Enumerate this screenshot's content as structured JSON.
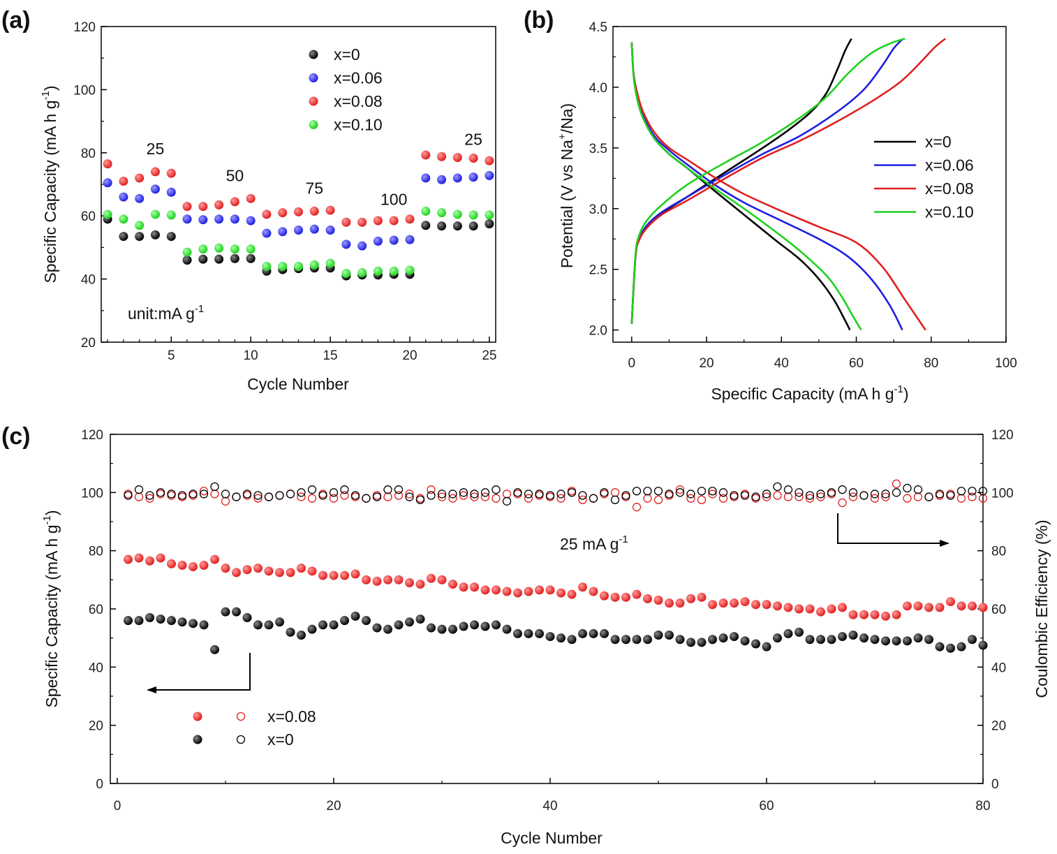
{
  "chart_data": [
    {
      "id": "a",
      "panel_label": "(a)",
      "type": "scatter",
      "xlabel": "Cycle Number",
      "ylabel": "Specific Capacity (mA h g",
      "ylabel_sup": "-1",
      "ylabel_end": ")",
      "xlim": [
        0.6,
        25.4
      ],
      "ylim": [
        20,
        120
      ],
      "xticks": [
        5,
        10,
        15,
        20,
        25
      ],
      "yticks": [
        20,
        40,
        60,
        80,
        100,
        120
      ],
      "note": "unit:mA g",
      "note_sup": "-1",
      "rate_labels": [
        {
          "text": "25",
          "x": 4.0,
          "y": 79.5
        },
        {
          "text": "50",
          "x": 9.0,
          "y": 71.0
        },
        {
          "text": "75",
          "x": 14.0,
          "y": 67.0
        },
        {
          "text": "100",
          "x": 19.0,
          "y": 63.5
        },
        {
          "text": "25",
          "x": 24.0,
          "y": 82.5
        }
      ],
      "series": [
        {
          "name": "x=0",
          "color": "#000000",
          "x": [
            1,
            2,
            3,
            4,
            5,
            6,
            7,
            8,
            9,
            10,
            11,
            12,
            13,
            14,
            15,
            16,
            17,
            18,
            19,
            20,
            21,
            22,
            23,
            24,
            25
          ],
          "y": [
            59,
            53.5,
            53.5,
            54,
            53.5,
            46,
            46.3,
            46.3,
            46.5,
            46.5,
            42.5,
            43,
            43.3,
            43.5,
            43.5,
            41,
            41.3,
            41.3,
            41.5,
            41.5,
            57,
            56.8,
            56.8,
            56.8,
            57.5
          ]
        },
        {
          "name": "x=0.06",
          "color": "#1f1fe0",
          "x": [
            1,
            2,
            3,
            4,
            5,
            6,
            7,
            8,
            9,
            10,
            11,
            12,
            13,
            14,
            15,
            16,
            17,
            18,
            19,
            20,
            21,
            22,
            23,
            24,
            25
          ],
          "y": [
            70.5,
            66,
            65.5,
            68.5,
            67.5,
            59,
            58.8,
            59,
            59,
            58.5,
            54.5,
            55,
            55.5,
            55.8,
            55.5,
            51,
            50.5,
            52,
            52.3,
            52.5,
            72,
            71.5,
            72,
            72.3,
            72.8
          ]
        },
        {
          "name": "x=0.08",
          "color": "#e01f1f",
          "x": [
            1,
            2,
            3,
            4,
            5,
            6,
            7,
            8,
            9,
            10,
            11,
            12,
            13,
            14,
            15,
            16,
            17,
            18,
            19,
            20,
            21,
            22,
            23,
            24,
            25
          ],
          "y": [
            76.5,
            71,
            72,
            74,
            73.5,
            63,
            63,
            63.5,
            64.5,
            65.5,
            60.5,
            61,
            61.3,
            61.5,
            61.8,
            58,
            58,
            58.5,
            58.5,
            59,
            79.3,
            78.8,
            78.5,
            78.3,
            77.5
          ]
        },
        {
          "name": "x=0.10",
          "color": "#1fd11f",
          "x": [
            1,
            2,
            3,
            4,
            5,
            6,
            7,
            8,
            9,
            10,
            11,
            12,
            13,
            14,
            15,
            16,
            17,
            18,
            19,
            20,
            21,
            22,
            23,
            24,
            25
          ],
          "y": [
            60.5,
            59,
            57,
            60.5,
            60.3,
            48.5,
            49.5,
            49.8,
            49.5,
            49.5,
            44,
            44,
            44,
            44.5,
            45,
            41.8,
            42,
            42.5,
            42.5,
            42.8,
            61.5,
            61,
            60.5,
            60.3,
            60.3
          ]
        }
      ]
    },
    {
      "id": "b",
      "panel_label": "(b)",
      "type": "line",
      "xlabel": "Specific Capacity (mA h g",
      "xlabel_sup": "-1",
      "xlabel_end": ")",
      "ylabel": "Potential (V vs Na",
      "ylabel_sup": "+",
      "ylabel_end": "/Na)",
      "xlim": [
        -5,
        100
      ],
      "ylim": [
        1.9,
        4.5
      ],
      "xticks": [
        0,
        20,
        40,
        60,
        80,
        100
      ],
      "yticks": [
        2.0,
        2.5,
        3.0,
        3.5,
        4.0,
        4.5
      ],
      "ytick_labels": [
        "2.0",
        "2.5",
        "3.0",
        "3.5",
        "4.0",
        "4.5"
      ],
      "series": [
        {
          "name": "x=0",
          "color": "#000000",
          "charge_x": [
            0,
            1,
            2,
            4,
            8,
            15,
            25,
            35,
            42,
            48,
            52,
            55,
            57,
            58.7
          ],
          "charge_y": [
            2.05,
            2.6,
            2.75,
            2.85,
            2.96,
            3.1,
            3.3,
            3.5,
            3.65,
            3.8,
            3.95,
            4.15,
            4.3,
            4.4
          ],
          "discharge_x": [
            0,
            0.5,
            1.5,
            3,
            6,
            10,
            15,
            22,
            30,
            38,
            45,
            50,
            54,
            57,
            58.3
          ],
          "discharge_y": [
            4.37,
            4.1,
            3.9,
            3.75,
            3.58,
            3.45,
            3.33,
            3.15,
            2.95,
            2.75,
            2.58,
            2.42,
            2.25,
            2.08,
            2.0
          ]
        },
        {
          "name": "x=0.06",
          "color": "#1f1fe0",
          "charge_x": [
            0,
            1,
            2,
            4,
            8,
            15,
            25,
            35,
            45,
            55,
            62,
            67,
            70,
            72.5
          ],
          "charge_y": [
            2.05,
            2.6,
            2.75,
            2.86,
            2.97,
            3.1,
            3.28,
            3.45,
            3.6,
            3.8,
            3.98,
            4.18,
            4.32,
            4.4
          ],
          "discharge_x": [
            0,
            0.5,
            1.5,
            3,
            6,
            10,
            15,
            22,
            30,
            40,
            50,
            58,
            64,
            69,
            72.3
          ],
          "discharge_y": [
            4.37,
            4.1,
            3.92,
            3.77,
            3.6,
            3.48,
            3.36,
            3.2,
            3.05,
            2.9,
            2.75,
            2.6,
            2.42,
            2.2,
            2.0
          ]
        },
        {
          "name": "x=0.08",
          "color": "#e01f1f",
          "charge_x": [
            0,
            1,
            2,
            4,
            8,
            15,
            25,
            35,
            45,
            55,
            65,
            72,
            77,
            81,
            83.8
          ],
          "charge_y": [
            2.05,
            2.6,
            2.74,
            2.84,
            2.95,
            3.07,
            3.25,
            3.42,
            3.56,
            3.72,
            3.9,
            4.05,
            4.2,
            4.33,
            4.4
          ],
          "discharge_x": [
            0,
            0.5,
            1.5,
            3,
            6,
            10,
            15,
            22,
            30,
            40,
            50,
            60,
            67,
            73,
            78.5
          ],
          "discharge_y": [
            4.37,
            4.12,
            3.95,
            3.8,
            3.63,
            3.5,
            3.4,
            3.26,
            3.12,
            2.98,
            2.85,
            2.72,
            2.52,
            2.25,
            2.0
          ]
        },
        {
          "name": "x=0.10",
          "color": "#1fd11f",
          "charge_x": [
            0,
            1,
            2,
            4,
            8,
            15,
            25,
            35,
            45,
            52,
            58,
            64,
            69,
            73
          ],
          "charge_y": [
            2.05,
            2.62,
            2.78,
            2.9,
            3.03,
            3.2,
            3.38,
            3.55,
            3.75,
            3.92,
            4.12,
            4.28,
            4.36,
            4.4
          ],
          "discharge_x": [
            0,
            0.5,
            1.5,
            3,
            6,
            10,
            15,
            22,
            30,
            38,
            45,
            52,
            56,
            59,
            61.3
          ],
          "discharge_y": [
            4.37,
            4.1,
            3.9,
            3.75,
            3.58,
            3.45,
            3.33,
            3.17,
            3.0,
            2.82,
            2.65,
            2.45,
            2.28,
            2.12,
            2.0
          ]
        }
      ]
    },
    {
      "id": "c",
      "panel_label": "(c)",
      "type": "scatter",
      "xlabel": "Cycle Number",
      "ylabel": "Specific Capacity (mA h g",
      "ylabel_sup": "-1",
      "ylabel_end": ")",
      "y2label": "Coulombic Efficiency (%)",
      "xlim": [
        0,
        80
      ],
      "ylim": [
        0,
        120
      ],
      "y2lim": [
        0,
        120
      ],
      "xticks": [
        0,
        20,
        40,
        60,
        80
      ],
      "yticks": [
        0,
        20,
        40,
        60,
        80,
        100,
        120
      ],
      "note": "25 mA g",
      "note_sup": "-1",
      "series": [
        {
          "name": "x=0.08",
          "color": "#e01f1f",
          "kind": "capacity",
          "y": [
            77,
            77.5,
            76.5,
            77.5,
            75.5,
            75,
            74.5,
            75,
            77,
            74,
            72.5,
            73.5,
            74,
            73,
            72.5,
            72.5,
            74,
            73,
            71.5,
            71.5,
            71.5,
            72,
            70,
            69.5,
            70,
            70,
            69,
            68.5,
            70.5,
            70,
            68.5,
            67.5,
            67.5,
            66.5,
            66.5,
            66,
            65.5,
            66,
            66.5,
            66.5,
            65.5,
            65,
            67.5,
            66,
            64.5,
            64,
            64,
            65,
            63.5,
            63,
            62,
            62,
            63.5,
            64,
            61.5,
            62,
            62,
            62.5,
            61.5,
            61.5,
            61,
            60.5,
            60,
            60,
            59,
            60,
            60.5,
            58,
            58,
            58,
            57.5,
            58,
            61,
            61,
            60.5,
            60.5,
            62.5,
            61,
            61,
            60.5
          ]
        },
        {
          "name": "x=0.08",
          "color": "#e01f1f",
          "kind": "efficiency",
          "y": [
            99.5,
            98.5,
            98,
            99.5,
            99,
            98.5,
            99,
            100.5,
            99.5,
            97,
            98.5,
            99,
            98,
            98.5,
            99,
            99.5,
            98.5,
            98,
            99.5,
            98,
            99,
            98.5,
            98,
            99,
            98.5,
            99,
            99.5,
            98,
            101,
            98.5,
            98,
            99,
            98.5,
            98.5,
            98,
            99.5,
            99.5,
            98,
            99,
            98.5,
            98,
            100.5,
            97.5,
            98,
            99.5,
            100,
            98.5,
            95,
            98,
            97.5,
            99,
            101,
            98,
            97.5,
            99.5,
            98,
            98.5,
            99.5,
            98,
            98.5,
            99,
            98.5,
            98.5,
            98,
            98.5,
            99.5,
            96.5,
            98.5,
            99,
            98,
            98.5,
            103,
            98,
            98.5,
            98.5,
            99,
            99.5,
            98,
            98.5,
            98
          ]
        },
        {
          "name": "x=0",
          "color": "#000000",
          "kind": "capacity",
          "y": [
            56,
            56,
            57,
            56.5,
            56,
            55.5,
            55,
            54.5,
            46,
            59,
            59,
            57,
            54.5,
            54.5,
            55.5,
            52,
            51,
            53,
            54.5,
            54.5,
            56,
            57.5,
            56,
            53.5,
            53,
            54.5,
            55.5,
            56.5,
            53.5,
            53,
            53,
            54,
            54.5,
            54,
            54.5,
            53,
            51.5,
            51.5,
            51.5,
            50.5,
            50,
            49.5,
            51.5,
            51.5,
            51.5,
            49.5,
            49.5,
            49.5,
            49.5,
            51,
            51,
            49.5,
            48.5,
            48.5,
            49.5,
            50,
            50.5,
            49,
            48,
            47,
            50,
            51.5,
            52,
            49.5,
            49.5,
            49.5,
            50.5,
            51,
            50,
            49.5,
            49,
            49,
            49,
            50,
            49.5,
            47,
            46.5,
            47,
            49.5,
            47.5
          ]
        },
        {
          "name": "x=0",
          "color": "#000000",
          "kind": "efficiency",
          "y": [
            99,
            101,
            99,
            100,
            99.5,
            99,
            99.5,
            99.5,
            102,
            99.5,
            98.5,
            99.5,
            99,
            98.5,
            99,
            99.5,
            100,
            101,
            99,
            100,
            101,
            99,
            98,
            98.5,
            101,
            101,
            98.5,
            97.5,
            99,
            99.5,
            99.5,
            100,
            99.5,
            100,
            101,
            97,
            100,
            99.5,
            99.5,
            99,
            99.5,
            100,
            99,
            98,
            100,
            97.5,
            99,
            100.5,
            100.5,
            100.5,
            99.5,
            100,
            99.5,
            100.5,
            100.5,
            100,
            99,
            99,
            98.5,
            99.5,
            102,
            101,
            100,
            99,
            99.5,
            100,
            101,
            100,
            99,
            99.5,
            99.5,
            100,
            101.5,
            101,
            98.5,
            99.5,
            99,
            100.5,
            100.5,
            100.5
          ]
        }
      ],
      "legend": [
        {
          "filled_color": "#e01f1f",
          "open_color": "#e01f1f",
          "label": "x=0.08"
        },
        {
          "filled_color": "#000000",
          "open_color": "#000000",
          "label": "x=0"
        }
      ]
    }
  ]
}
